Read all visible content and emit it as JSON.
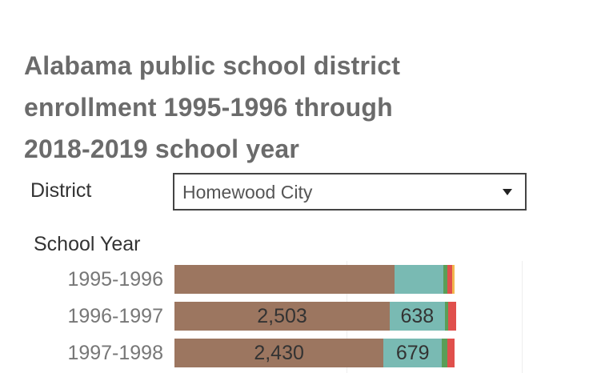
{
  "title_lines": [
    "Alabama public school district",
    "enrollment 1995-1996 through",
    "2018-2019 school year"
  ],
  "filter": {
    "label": "District",
    "selected": "Homewood City"
  },
  "chart_data": {
    "type": "bar",
    "orientation": "horizontal",
    "stacked": true,
    "y_header": "School Year",
    "categories": [
      "1995-1996",
      "1996-1997",
      "1997-1998"
    ],
    "series": [
      {
        "values": [
          2560,
          2503,
          2430
        ],
        "labels": [
          "",
          "2,503",
          "2,430"
        ],
        "color": "#9c7660"
      },
      {
        "values": [
          570,
          638,
          679
        ],
        "labels": [
          "",
          "638",
          "679"
        ],
        "color": "#79bab3"
      },
      {
        "values": [
          40,
          40,
          60
        ],
        "labels": [
          "",
          "",
          ""
        ],
        "color": "#5a9e57"
      },
      {
        "values": [
          60,
          90,
          85
        ],
        "labels": [
          "",
          "",
          ""
        ],
        "color": "#e0504c"
      },
      {
        "values": [
          25,
          0,
          0
        ],
        "labels": [
          "",
          "",
          ""
        ],
        "color": "#f2b84e"
      }
    ],
    "grid": true
  }
}
